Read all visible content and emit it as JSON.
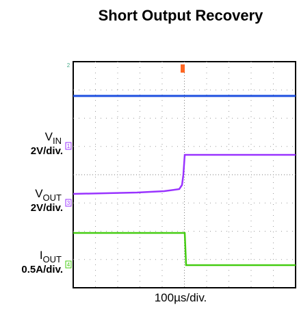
{
  "chart_data": {
    "type": "oscilloscope",
    "title": "Short Output Recovery",
    "x_label": "100µs/div.",
    "channels": [
      {
        "name": "V",
        "sub": "IN",
        "scale": "2V/div.",
        "marker": "1",
        "color": "#9933ff"
      },
      {
        "name": "V",
        "sub": "OUT",
        "scale": "2V/div.",
        "marker": "3",
        "color": "#9933ff"
      },
      {
        "name": "I",
        "sub": "OUT",
        "scale": "0.5A/div.",
        "marker": "4",
        "color": "#44cc11"
      }
    ],
    "top_marker": "2"
  }
}
